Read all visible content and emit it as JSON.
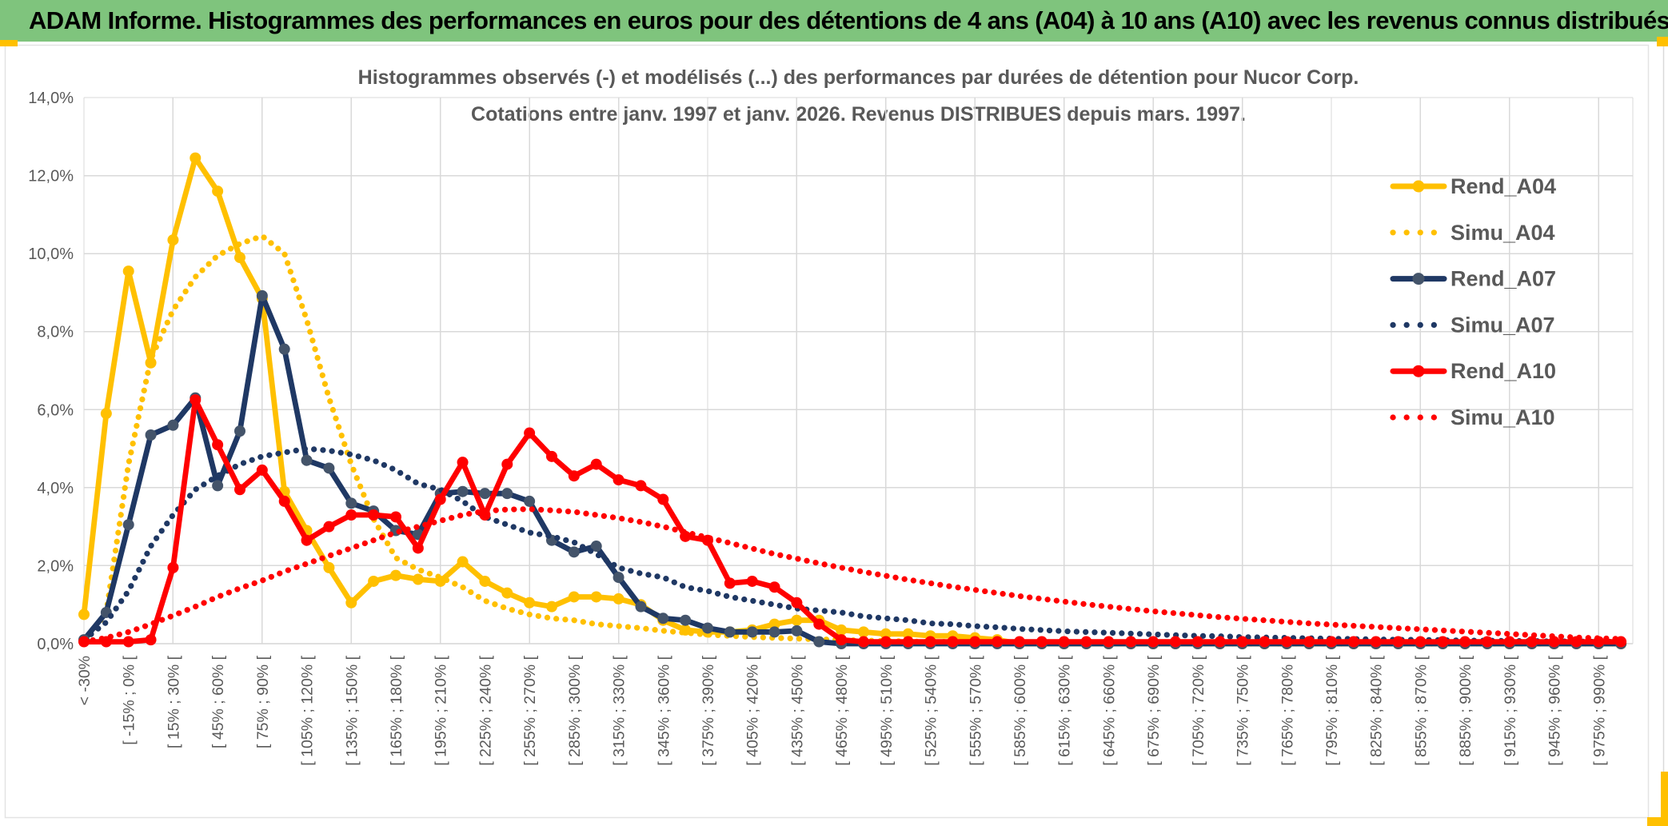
{
  "header": {
    "title": "ADAM Informe. Histogrammes des performances en euros pour des détentions de 4 ans (A04) à 10 ans (A10) avec les revenus connus distribués"
  },
  "colors": {
    "header_green": "#7fc47d",
    "accent_gold": "#FFC000",
    "text_gray": "#595959",
    "gridline": "#D9D9D9",
    "axis_line": "#BFBFBF",
    "series_gold": "#FFC000",
    "series_navy": "#1F3864",
    "series_navy_marker": "#44546A",
    "series_red": "#FF0000"
  },
  "chart_data": {
    "type": "line",
    "title_line1": "Histogrammes observés (-) et modélisés (...) des performances par durées de détention pour Nucor Corp.",
    "title_line2": "Cotations entre janv. 1997 et janv. 2026. Revenus DISTRIBUES depuis mars. 1997.",
    "grid": true,
    "legend_position": "right",
    "ylim": [
      0,
      14
    ],
    "y_tick_step_pct": 2,
    "y_tick_labels": [
      "0,0%",
      "2,0%",
      "4,0%",
      "6,0%",
      "8,0%",
      "10,0%",
      "12,0%",
      "14,0%"
    ],
    "x_label_every_n_points": 2,
    "x_tick_labels": [
      "< -30%",
      "[ -15% ; 0% [",
      "[ 15% ; 30% [",
      "[ 45% ; 60% [",
      "[ 75% ; 90% [",
      "[ 105% ; 120% [",
      "[ 135% ; 150% [",
      "[ 165% ; 180% [",
      "[ 195% ; 210% [",
      "[ 225% ; 240% [",
      "[ 255% ; 270% [",
      "[ 285% ; 300% [",
      "[ 315% ; 330% [",
      "[ 345% ; 360% [",
      "[ 375% ; 390% [",
      "[ 405% ; 420% [",
      "[ 435% ; 450% [",
      "[ 465% ; 480% [",
      "[ 495% ; 510% [",
      "[ 525% ; 540% [",
      "[ 555% ; 570% [",
      "[ 585% ; 600% [",
      "[ 615% ; 630% [",
      "[ 645% ; 660% [",
      "[ 675% ; 690% [",
      "[ 705% ; 720% [",
      "[ 735% ; 750% [",
      "[ 765% ; 780% [",
      "[ 795% ; 810% [",
      "[ 825% ; 840% [",
      "[ 855% ; 870% [",
      "[ 885% ; 900% [",
      "[ 915% ; 930% [",
      "[ 945% ; 960% [",
      "[ 975% ; 990% ["
    ],
    "series": [
      {
        "name": "Rend_A04",
        "style": "solid",
        "color": "#FFC000",
        "marker_color": "#FFC000",
        "values": [
          0.75,
          5.9,
          9.55,
          7.2,
          10.35,
          12.45,
          11.6,
          9.9,
          8.85,
          3.9,
          2.9,
          1.95,
          1.05,
          1.6,
          1.75,
          1.65,
          1.6,
          2.1,
          1.6,
          1.3,
          1.05,
          0.95,
          1.2,
          1.2,
          1.15,
          1.0,
          0.6,
          0.35,
          0.3,
          0.3,
          0.35,
          0.5,
          0.6,
          0.6,
          0.35,
          0.3,
          0.25,
          0.25,
          0.2,
          0.2,
          0.15,
          0.1,
          0,
          0,
          0,
          0,
          0,
          0,
          0,
          0,
          0,
          0,
          0,
          0,
          0,
          0,
          0,
          0,
          0,
          0,
          0,
          0,
          0,
          0,
          0,
          0,
          0,
          0,
          0,
          0
        ]
      },
      {
        "name": "Simu_A04",
        "style": "dotted",
        "color": "#FFC000",
        "values": [
          0.05,
          0.8,
          4.6,
          7.3,
          8.55,
          9.4,
          9.95,
          10.25,
          10.45,
          10.0,
          8.3,
          6.3,
          4.6,
          3.2,
          2.2,
          1.9,
          1.7,
          1.45,
          1.1,
          0.9,
          0.75,
          0.65,
          0.6,
          0.5,
          0.45,
          0.4,
          0.33,
          0.28,
          0.23,
          0.2,
          0.17,
          0.15,
          0.13,
          0.11,
          0.1,
          0.08,
          0.07,
          0.06,
          0.05,
          0.05,
          0.04,
          0.04,
          0.03,
          0.03,
          0.02,
          0.02,
          0.02,
          0.01,
          0.01,
          0.01,
          0,
          0,
          0,
          0,
          0,
          0,
          0,
          0,
          0,
          0,
          0,
          0,
          0,
          0,
          0,
          0,
          0,
          0,
          0,
          0
        ]
      },
      {
        "name": "Rend_A07",
        "style": "solid",
        "color": "#1F3864",
        "marker_color": "#44546A",
        "values": [
          0.1,
          0.8,
          3.05,
          5.35,
          5.6,
          6.3,
          4.05,
          5.45,
          8.92,
          7.55,
          4.7,
          4.5,
          3.6,
          3.4,
          2.9,
          2.8,
          3.85,
          3.9,
          3.85,
          3.85,
          3.65,
          2.65,
          2.35,
          2.5,
          1.7,
          0.95,
          0.65,
          0.6,
          0.4,
          0.3,
          0.3,
          0.3,
          0.33,
          0.05,
          0,
          0,
          0,
          0,
          0,
          0,
          0,
          0,
          0,
          0,
          0,
          0,
          0,
          0,
          0,
          0,
          0,
          0,
          0,
          0,
          0,
          0,
          0,
          0,
          0,
          0,
          0,
          0,
          0,
          0,
          0,
          0,
          0,
          0,
          0,
          0
        ]
      },
      {
        "name": "Simu_A07",
        "style": "dotted",
        "color": "#1F3864",
        "values": [
          0.1,
          0.55,
          1.35,
          2.5,
          3.3,
          3.95,
          4.3,
          4.6,
          4.8,
          4.9,
          5.0,
          4.95,
          4.85,
          4.7,
          4.45,
          4.1,
          3.95,
          3.65,
          3.25,
          3.05,
          2.85,
          2.75,
          2.6,
          2.3,
          1.95,
          1.8,
          1.7,
          1.45,
          1.35,
          1.2,
          1.1,
          1.0,
          0.9,
          0.85,
          0.8,
          0.7,
          0.65,
          0.6,
          0.52,
          0.5,
          0.45,
          0.42,
          0.38,
          0.35,
          0.32,
          0.3,
          0.28,
          0.26,
          0.24,
          0.22,
          0.2,
          0.19,
          0.17,
          0.16,
          0.15,
          0.14,
          0.13,
          0.12,
          0.11,
          0.1,
          0.1,
          0.09,
          0.08,
          0.08,
          0.07,
          0.07,
          0.06,
          0.06,
          0.05,
          0.05
        ]
      },
      {
        "name": "Rend_A10",
        "style": "solid",
        "color": "#FF0000",
        "marker_color": "#FF0000",
        "values": [
          0.05,
          0.05,
          0.05,
          0.1,
          1.95,
          6.25,
          5.1,
          3.95,
          4.45,
          3.65,
          2.65,
          3.0,
          3.3,
          3.3,
          3.25,
          2.45,
          3.7,
          4.65,
          3.3,
          4.6,
          5.4,
          4.8,
          4.3,
          4.6,
          4.2,
          4.05,
          3.7,
          2.75,
          2.65,
          1.55,
          1.6,
          1.45,
          1.05,
          0.5,
          0.1,
          0.05,
          0.05,
          0.05,
          0.05,
          0.05,
          0.05,
          0.05,
          0.05,
          0.05,
          0.05,
          0.05,
          0.05,
          0.05,
          0.05,
          0.05,
          0.05,
          0.05,
          0.05,
          0.05,
          0.05,
          0.05,
          0.05,
          0.05,
          0.05,
          0.05,
          0.05,
          0.05,
          0.05,
          0.05,
          0.05,
          0.05,
          0.05,
          0.05,
          0.05,
          0.05
        ]
      },
      {
        "name": "Simu_A10",
        "style": "dotted",
        "color": "#FF0000",
        "values": [
          0.05,
          0.15,
          0.3,
          0.5,
          0.72,
          0.95,
          1.2,
          1.42,
          1.62,
          1.85,
          2.05,
          2.25,
          2.45,
          2.65,
          2.85,
          3.0,
          3.15,
          3.3,
          3.4,
          3.44,
          3.45,
          3.42,
          3.38,
          3.3,
          3.22,
          3.12,
          3.0,
          2.86,
          2.72,
          2.58,
          2.44,
          2.3,
          2.18,
          2.06,
          1.95,
          1.84,
          1.74,
          1.64,
          1.55,
          1.46,
          1.38,
          1.3,
          1.22,
          1.15,
          1.08,
          1.01,
          0.95,
          0.89,
          0.83,
          0.78,
          0.73,
          0.68,
          0.64,
          0.6,
          0.56,
          0.52,
          0.49,
          0.46,
          0.43,
          0.4,
          0.37,
          0.34,
          0.31,
          0.28,
          0.25,
          0.22,
          0.19,
          0.16,
          0.14,
          0.12
        ]
      }
    ]
  }
}
